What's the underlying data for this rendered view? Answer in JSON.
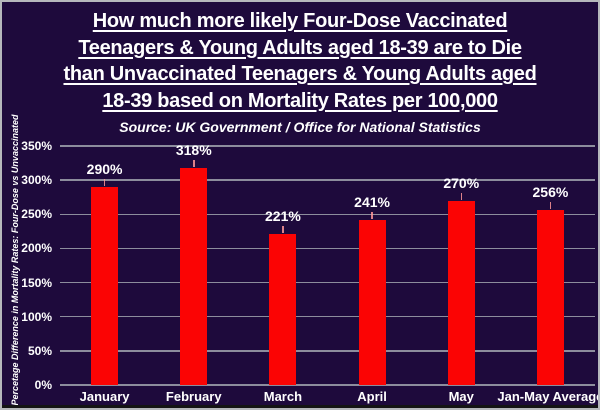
{
  "title": {
    "lines": [
      "How much more likely Four-Dose Vaccinated",
      "Teenagers & Young Adults aged 18-39 are to Die",
      "than Unvaccinated Teenagers & Young Adults aged",
      "18-39 based on Mortality Rates per 100,000"
    ],
    "subtitle": "Source: UK Government / Office for National Statistics"
  },
  "colors": {
    "background": "#1e0a3c",
    "bar": "#fb0404",
    "gridline": "#8d8d9d",
    "text": "#ffffff",
    "frame_border": "#b6b8bc"
  },
  "chart_data": {
    "type": "bar",
    "title": "How much more likely Four-Dose Vaccinated Teenagers & Young Adults aged 18-39 are to Die than Unvaccinated Teenagers & Young Adults aged 18-39 based on Mortality Rates per 100,000",
    "subtitle": "Source: UK Government / Office for National Statistics",
    "categories": [
      "January",
      "February",
      "March",
      "April",
      "May",
      "Jan-May Average"
    ],
    "values": [
      290,
      318,
      221,
      241,
      270,
      256
    ],
    "data_labels": [
      "290%",
      "318%",
      "221%",
      "241%",
      "270%",
      "256%"
    ],
    "xlabel": "",
    "ylabel": "Percetage Difference in Mortality Rates: Four-Dose vs Unvaccinated",
    "ylim": [
      0,
      350
    ],
    "ytick_step": 50,
    "ytick_labels": [
      "0%",
      "50%",
      "100%",
      "150%",
      "200%",
      "250%",
      "300%",
      "350%"
    ],
    "grid": true,
    "legend": false
  }
}
